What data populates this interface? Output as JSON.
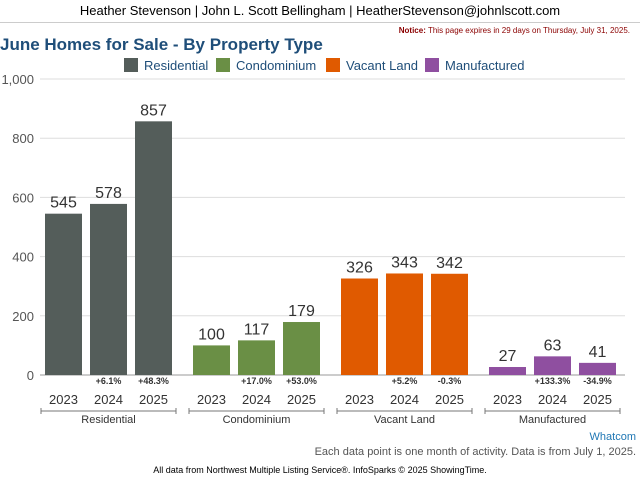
{
  "header": {
    "agent": "Heather Stevenson | John L. Scott Bellingham | HeatherStevenson@johnlscott.com"
  },
  "notice": {
    "label": "Notice:",
    "text": "This page expires in 29 days on Thursday, July 31, 2025."
  },
  "footer": {
    "region": "Whatcom",
    "note": "Each data point is one month of activity. Data is from July 1, 2025.",
    "source": "All data from Northwest Multiple Listing Service®. InfoSparks © 2025 ShowingTime."
  },
  "colors": {
    "residential": "#545d5a",
    "condominium": "#6a8f45",
    "vacant_land": "#e05a00",
    "manufactured": "#8f4fa0",
    "title": "#1f4e79"
  },
  "chart_data": {
    "type": "bar",
    "title": "June Homes for Sale - By Property Type",
    "ylim": [
      0,
      1000
    ],
    "yticks": [
      "0",
      "200",
      "400",
      "600",
      "800",
      "1,000"
    ],
    "ytick_values": [
      0,
      200,
      400,
      600,
      800,
      1000
    ],
    "grid": true,
    "legend": "top-center",
    "groups": [
      {
        "name": "Residential",
        "color": "#545d5a",
        "years": [
          "2023",
          "2024",
          "2025"
        ],
        "values": [
          545,
          578,
          857
        ],
        "changes": [
          "",
          "+6.1%",
          "+48.3%"
        ]
      },
      {
        "name": "Condominium",
        "color": "#6a8f45",
        "years": [
          "2023",
          "2024",
          "2025"
        ],
        "values": [
          100,
          117,
          179
        ],
        "changes": [
          "",
          "+17.0%",
          "+53.0%"
        ]
      },
      {
        "name": "Vacant Land",
        "color": "#e05a00",
        "years": [
          "2023",
          "2024",
          "2025"
        ],
        "values": [
          326,
          343,
          342
        ],
        "changes": [
          "",
          "+5.2%",
          "-0.3%"
        ]
      },
      {
        "name": "Manufactured",
        "color": "#8f4fa0",
        "years": [
          "2023",
          "2024",
          "2025"
        ],
        "values": [
          27,
          63,
          41
        ],
        "changes": [
          "",
          "+133.3%",
          "-34.9%"
        ]
      }
    ]
  }
}
